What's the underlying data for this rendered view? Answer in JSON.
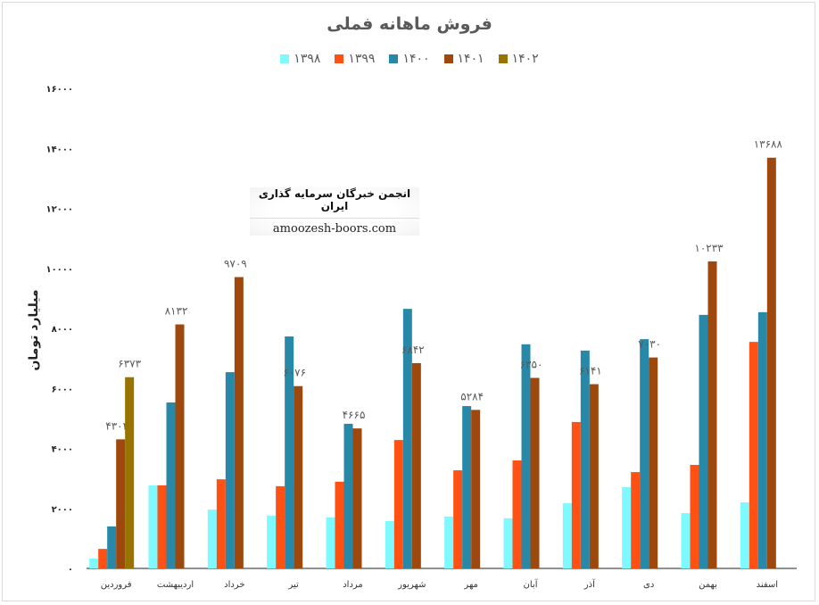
{
  "chart_data": {
    "type": "bar",
    "title": "فروش ماهانه فملی",
    "ylabel": "میلیارد تومان",
    "xlabel": "",
    "ylim": [
      0,
      16000
    ],
    "yticks": [
      0,
      2000,
      4000,
      6000,
      8000,
      10000,
      12000,
      14000,
      16000
    ],
    "ytick_labels": [
      "۰",
      "۲۰۰۰",
      "۴۰۰۰",
      "۶۰۰۰",
      "۸۰۰۰",
      "۱۰۰۰۰",
      "۱۲۰۰۰",
      "۱۴۰۰۰",
      "۱۶۰۰۰"
    ],
    "grid": false,
    "legend_position": "top",
    "categories": [
      "فروردین",
      "اردیبهشت",
      "خرداد",
      "تیر",
      "مرداد",
      "شهریور",
      "مهر",
      "آبان",
      "آذر",
      "دی",
      "بهمن",
      "اسفند"
    ],
    "series": [
      {
        "name": "۱۳۹۸",
        "color": "#7df9ff",
        "values": [
          330,
          2770,
          1960,
          1760,
          1700,
          1580,
          1730,
          1670,
          2170,
          2710,
          1840,
          2200
        ]
      },
      {
        "name": "۱۳۹۹",
        "color": "#ff5113",
        "values": [
          650,
          2770,
          2970,
          2740,
          2890,
          4280,
          3270,
          3600,
          4880,
          3210,
          3450,
          7550
        ]
      },
      {
        "name": "۱۴۰۰",
        "color": "#2788a7",
        "values": [
          1400,
          5530,
          6540,
          7730,
          4820,
          8650,
          5410,
          7470,
          7260,
          7640,
          8450,
          8540
        ]
      },
      {
        "name": "۱۴۰۱",
        "color": "#9e480e",
        "values": [
          4302,
          8132,
          9709,
          6076,
          4665,
          6842,
          5284,
          6350,
          6141,
          7030,
          10233,
          13688
        ],
        "labels": [
          "۴۳۰۲",
          "۸۱۳۲",
          "۹۷۰۹",
          "۶۰۷۶",
          "۴۶۶۵",
          "۶۸۴۲",
          "۵۲۸۴",
          "۶۳۵۰",
          "۶۱۴۱",
          "۷۰۳۰",
          "۱۰۲۳۳",
          "۱۳۶۸۸"
        ]
      },
      {
        "name": "۱۴۰۲",
        "color": "#997300",
        "values": [
          6373,
          null,
          null,
          null,
          null,
          null,
          null,
          null,
          null,
          null,
          null,
          null
        ],
        "labels": [
          "۶۳۷۳",
          "",
          "",
          "",
          "",
          "",
          "",
          "",
          "",
          "",
          "",
          ""
        ]
      }
    ]
  },
  "watermark": {
    "line1": "انجمن خبرگان سرمایه گذاری ایران",
    "line2": "amoozesh-boors.com"
  }
}
